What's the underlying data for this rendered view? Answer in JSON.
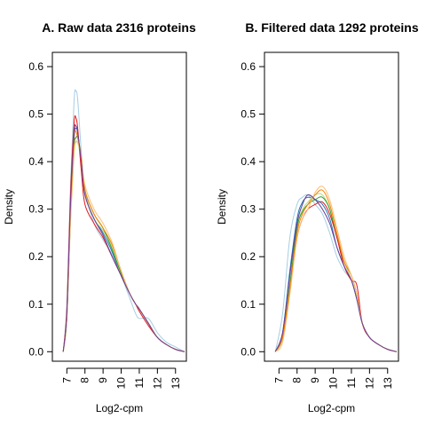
{
  "chart_data": [
    {
      "type": "line",
      "title": "A. Raw data  2316  proteins",
      "xlabel": "Log2-cpm",
      "ylabel": "Density",
      "xlim": [
        6.2,
        13.6
      ],
      "ylim": [
        -0.02,
        0.63
      ],
      "xticks": [
        7,
        8,
        9,
        10,
        11,
        12,
        13
      ],
      "xtick_labels": [
        "7",
        "8",
        "9",
        "10",
        "11",
        "12",
        "13"
      ],
      "yticks": [
        0.0,
        0.1,
        0.2,
        0.3,
        0.4,
        0.5,
        0.6
      ],
      "ytick_labels": [
        "0.0",
        "0.1",
        "0.2",
        "0.3",
        "0.4",
        "0.5",
        "0.6"
      ],
      "grid": false,
      "series": [
        {
          "color": "#a6cee3",
          "x": [
            6.8,
            7.0,
            7.2,
            7.4,
            7.5,
            7.6,
            7.8,
            8.0,
            8.5,
            9.0,
            9.5,
            10.0,
            10.5,
            10.8,
            11.0,
            11.5,
            12.0,
            12.5,
            13.0,
            13.5
          ],
          "y": [
            0.0,
            0.1,
            0.35,
            0.53,
            0.548,
            0.53,
            0.42,
            0.34,
            0.27,
            0.235,
            0.205,
            0.16,
            0.11,
            0.08,
            0.07,
            0.07,
            0.04,
            0.02,
            0.01,
            0.0
          ]
        },
        {
          "color": "#1f78b4",
          "x": [
            6.8,
            7.0,
            7.2,
            7.4,
            7.5,
            7.6,
            7.8,
            8.0,
            8.5,
            9.0,
            9.5,
            10.0,
            10.5,
            10.8,
            11.0,
            11.5,
            12.0,
            12.5,
            13.0,
            13.5
          ],
          "y": [
            0.0,
            0.08,
            0.3,
            0.45,
            0.47,
            0.46,
            0.4,
            0.33,
            0.28,
            0.25,
            0.21,
            0.16,
            0.12,
            0.1,
            0.09,
            0.06,
            0.03,
            0.015,
            0.005,
            0.0
          ]
        },
        {
          "color": "#b2df8a",
          "x": [
            6.8,
            7.0,
            7.2,
            7.4,
            7.5,
            7.6,
            7.8,
            8.0,
            8.5,
            9.0,
            9.5,
            10.0,
            10.5,
            10.8,
            11.0,
            11.5,
            12.0,
            12.5,
            13.0,
            13.5
          ],
          "y": [
            0.0,
            0.07,
            0.28,
            0.42,
            0.44,
            0.44,
            0.4,
            0.33,
            0.28,
            0.255,
            0.22,
            0.16,
            0.12,
            0.1,
            0.09,
            0.06,
            0.03,
            0.015,
            0.005,
            0.0
          ]
        },
        {
          "color": "#33a02c",
          "x": [
            6.8,
            7.0,
            7.2,
            7.4,
            7.5,
            7.6,
            7.8,
            8.0,
            8.5,
            9.0,
            9.5,
            10.0,
            10.5,
            10.8,
            11.0,
            11.5,
            12.0,
            12.5,
            13.0,
            13.5
          ],
          "y": [
            0.0,
            0.07,
            0.28,
            0.43,
            0.45,
            0.45,
            0.41,
            0.34,
            0.29,
            0.26,
            0.215,
            0.165,
            0.12,
            0.1,
            0.09,
            0.06,
            0.03,
            0.015,
            0.005,
            0.0
          ]
        },
        {
          "color": "#e31a1c",
          "x": [
            6.8,
            7.0,
            7.2,
            7.4,
            7.5,
            7.6,
            7.8,
            8.0,
            8.5,
            9.0,
            9.5,
            10.0,
            10.5,
            10.8,
            11.0,
            11.5,
            12.0,
            12.5,
            13.0,
            13.5
          ],
          "y": [
            0.0,
            0.09,
            0.33,
            0.48,
            0.492,
            0.47,
            0.38,
            0.31,
            0.27,
            0.24,
            0.2,
            0.16,
            0.12,
            0.1,
            0.085,
            0.055,
            0.03,
            0.015,
            0.005,
            0.0
          ]
        },
        {
          "color": "#ff7f00",
          "x": [
            6.8,
            7.0,
            7.2,
            7.4,
            7.5,
            7.6,
            7.8,
            8.0,
            8.5,
            9.0,
            9.5,
            10.0,
            10.5,
            10.8,
            11.0,
            11.5,
            12.0,
            12.5,
            13.0,
            13.5
          ],
          "y": [
            0.0,
            0.08,
            0.3,
            0.45,
            0.462,
            0.45,
            0.41,
            0.34,
            0.29,
            0.26,
            0.225,
            0.17,
            0.12,
            0.1,
            0.09,
            0.06,
            0.03,
            0.015,
            0.005,
            0.0
          ]
        },
        {
          "color": "#fdbf6f",
          "x": [
            6.8,
            7.0,
            7.2,
            7.4,
            7.5,
            7.6,
            7.8,
            8.0,
            8.5,
            9.0,
            9.5,
            10.0,
            10.5,
            10.8,
            11.0,
            11.5,
            12.0,
            12.5,
            13.0,
            13.5
          ],
          "y": [
            0.0,
            0.07,
            0.27,
            0.42,
            0.44,
            0.44,
            0.41,
            0.35,
            0.3,
            0.27,
            0.23,
            0.17,
            0.12,
            0.1,
            0.09,
            0.06,
            0.03,
            0.015,
            0.005,
            0.0
          ]
        },
        {
          "color": "#6a3d9a",
          "x": [
            6.8,
            7.0,
            7.2,
            7.4,
            7.5,
            7.6,
            7.8,
            8.0,
            8.5,
            9.0,
            9.5,
            10.0,
            10.5,
            10.8,
            11.0,
            11.5,
            12.0,
            12.5,
            13.0,
            13.5
          ],
          "y": [
            0.0,
            0.08,
            0.31,
            0.46,
            0.475,
            0.46,
            0.4,
            0.33,
            0.28,
            0.245,
            0.2,
            0.16,
            0.12,
            0.1,
            0.09,
            0.06,
            0.03,
            0.015,
            0.005,
            0.0
          ]
        }
      ]
    },
    {
      "type": "line",
      "title": "B. Filtered data 1292  proteins",
      "xlabel": "Log2-cpm",
      "ylabel": "Density",
      "xlim": [
        6.2,
        13.6
      ],
      "ylim": [
        -0.02,
        0.63
      ],
      "xticks": [
        7,
        8,
        9,
        10,
        11,
        12,
        13
      ],
      "xtick_labels": [
        "7",
        "8",
        "9",
        "10",
        "11",
        "12",
        "13"
      ],
      "yticks": [
        0.0,
        0.1,
        0.2,
        0.3,
        0.4,
        0.5,
        0.6
      ],
      "ytick_labels": [
        "0.0",
        "0.1",
        "0.2",
        "0.3",
        "0.4",
        "0.5",
        "0.6"
      ],
      "grid": false,
      "series": [
        {
          "color": "#a6cee3",
          "x": [
            6.8,
            7.2,
            7.6,
            8.0,
            8.3,
            8.6,
            9.0,
            9.4,
            9.8,
            10.2,
            10.6,
            11.0,
            11.3,
            11.6,
            12.0,
            12.5,
            13.0,
            13.5
          ],
          "y": [
            0.0,
            0.08,
            0.24,
            0.31,
            0.325,
            0.33,
            0.31,
            0.29,
            0.25,
            0.2,
            0.17,
            0.15,
            0.11,
            0.06,
            0.03,
            0.015,
            0.005,
            0.0
          ]
        },
        {
          "color": "#1f78b4",
          "x": [
            6.8,
            7.2,
            7.6,
            8.0,
            8.3,
            8.6,
            9.0,
            9.4,
            9.8,
            10.2,
            10.6,
            11.0,
            11.3,
            11.6,
            12.0,
            12.5,
            13.0,
            13.5
          ],
          "y": [
            0.0,
            0.04,
            0.17,
            0.28,
            0.315,
            0.325,
            0.32,
            0.31,
            0.28,
            0.22,
            0.18,
            0.15,
            0.11,
            0.06,
            0.03,
            0.015,
            0.005,
            0.0
          ]
        },
        {
          "color": "#b2df8a",
          "x": [
            6.8,
            7.2,
            7.6,
            8.0,
            8.3,
            8.6,
            9.0,
            9.4,
            9.8,
            10.2,
            10.6,
            11.0,
            11.3,
            11.6,
            12.0,
            12.5,
            13.0,
            13.5
          ],
          "y": [
            0.0,
            0.03,
            0.14,
            0.26,
            0.3,
            0.315,
            0.33,
            0.33,
            0.3,
            0.24,
            0.19,
            0.15,
            0.11,
            0.06,
            0.03,
            0.015,
            0.005,
            0.0
          ]
        },
        {
          "color": "#33a02c",
          "x": [
            6.8,
            7.2,
            7.6,
            8.0,
            8.3,
            8.6,
            9.0,
            9.4,
            9.8,
            10.2,
            10.6,
            11.0,
            11.3,
            11.6,
            12.0,
            12.5,
            13.0,
            13.5
          ],
          "y": [
            0.0,
            0.03,
            0.14,
            0.26,
            0.295,
            0.31,
            0.32,
            0.325,
            0.3,
            0.24,
            0.19,
            0.16,
            0.12,
            0.06,
            0.03,
            0.015,
            0.005,
            0.0
          ]
        },
        {
          "color": "#e31a1c",
          "x": [
            6.8,
            7.2,
            7.6,
            8.0,
            8.3,
            8.6,
            9.0,
            9.4,
            9.8,
            10.2,
            10.6,
            11.0,
            11.3,
            11.6,
            12.0,
            12.5,
            13.0,
            13.5
          ],
          "y": [
            0.0,
            0.03,
            0.13,
            0.24,
            0.28,
            0.3,
            0.31,
            0.315,
            0.29,
            0.24,
            0.18,
            0.15,
            0.14,
            0.06,
            0.03,
            0.015,
            0.005,
            0.0
          ]
        },
        {
          "color": "#ff7f00",
          "x": [
            6.8,
            7.2,
            7.6,
            8.0,
            8.3,
            8.6,
            9.0,
            9.4,
            9.8,
            10.2,
            10.6,
            11.0,
            11.3,
            11.6,
            12.0,
            12.5,
            13.0,
            13.5
          ],
          "y": [
            0.0,
            0.03,
            0.13,
            0.25,
            0.29,
            0.31,
            0.33,
            0.34,
            0.31,
            0.25,
            0.19,
            0.16,
            0.12,
            0.06,
            0.03,
            0.015,
            0.005,
            0.0
          ]
        },
        {
          "color": "#fdbf6f",
          "x": [
            6.8,
            7.2,
            7.6,
            8.0,
            8.3,
            8.6,
            9.0,
            9.4,
            9.8,
            10.2,
            10.6,
            11.0,
            11.3,
            11.6,
            12.0,
            12.5,
            13.0,
            13.5
          ],
          "y": [
            0.0,
            0.02,
            0.12,
            0.24,
            0.28,
            0.3,
            0.335,
            0.348,
            0.32,
            0.26,
            0.2,
            0.16,
            0.12,
            0.06,
            0.03,
            0.015,
            0.005,
            0.0
          ]
        },
        {
          "color": "#6a3d9a",
          "x": [
            6.8,
            7.2,
            7.6,
            8.0,
            8.3,
            8.6,
            9.0,
            9.4,
            9.8,
            10.2,
            10.6,
            11.0,
            11.3,
            11.6,
            12.0,
            12.5,
            13.0,
            13.5
          ],
          "y": [
            0.0,
            0.04,
            0.16,
            0.27,
            0.31,
            0.33,
            0.32,
            0.3,
            0.27,
            0.22,
            0.18,
            0.15,
            0.11,
            0.06,
            0.03,
            0.015,
            0.005,
            0.0
          ]
        }
      ]
    }
  ]
}
